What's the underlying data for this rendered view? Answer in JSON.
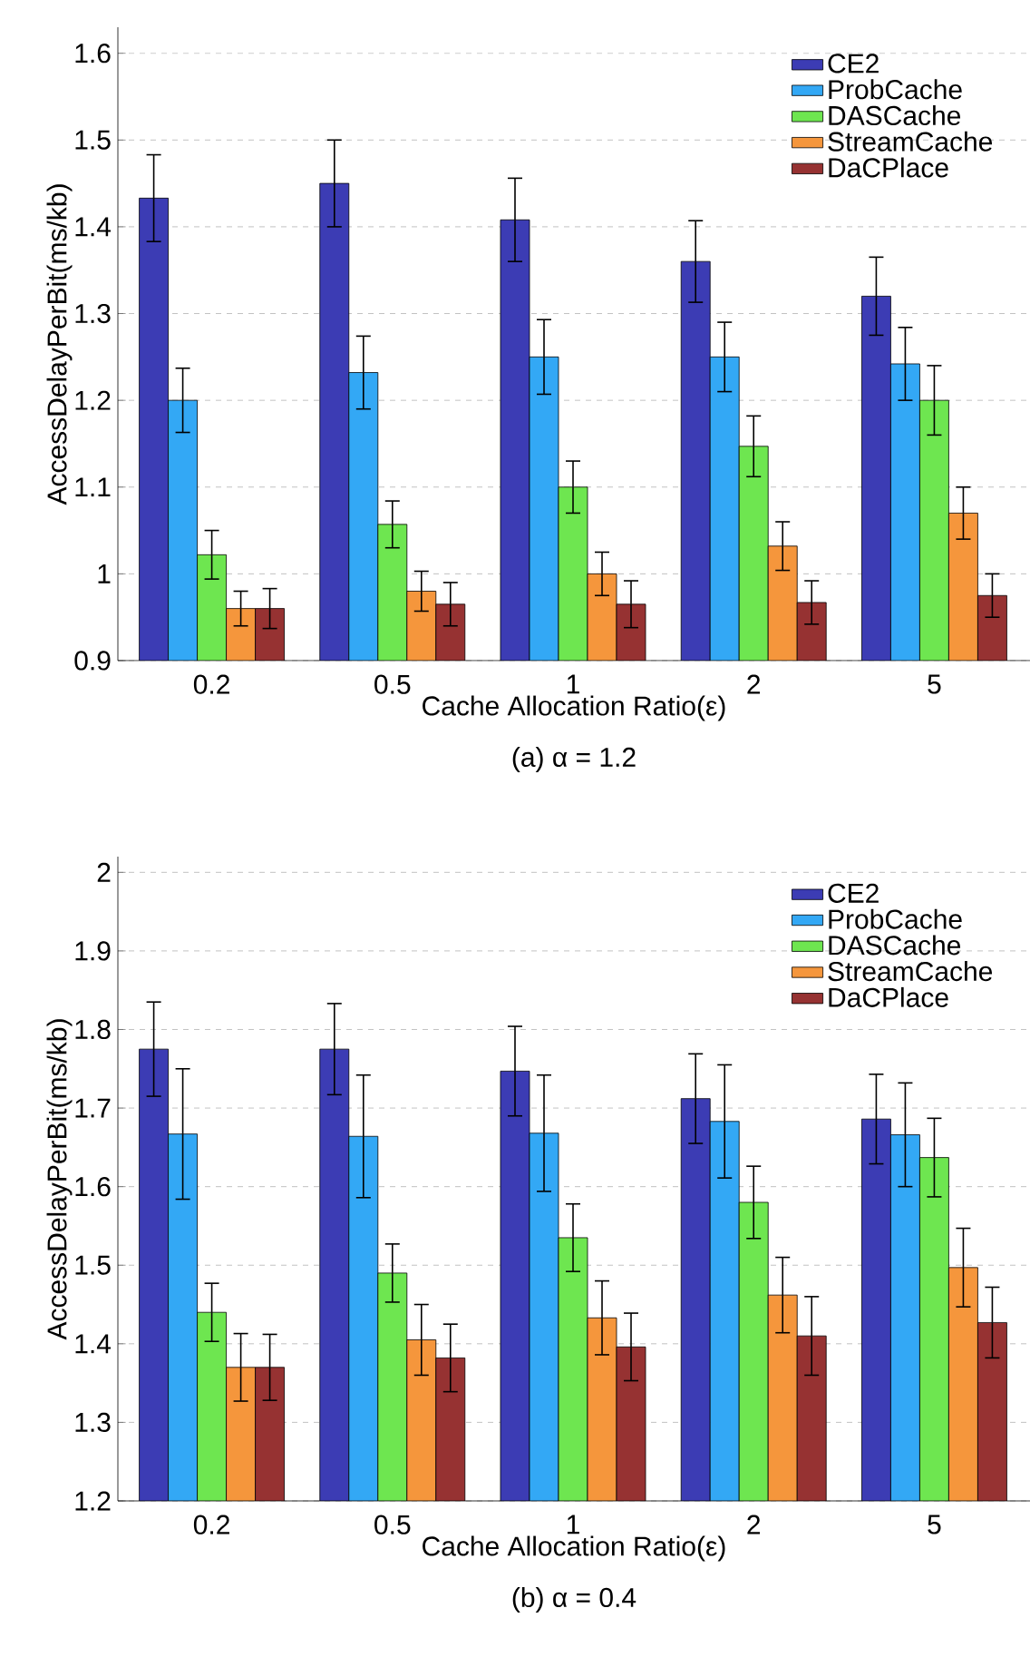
{
  "chart_data": [
    {
      "type": "bar",
      "title": "(a) α = 1.2",
      "xlabel": "Cache Allocation Ratio(ε)",
      "ylabel": "AccessDelayPerBit(ms/kb)",
      "categories": [
        "0.2",
        "0.5",
        "1",
        "2",
        "5"
      ],
      "series": [
        {
          "name": "CE2",
          "color": "#3c3cb4",
          "values": [
            1.433,
            1.45,
            1.408,
            1.36,
            1.32
          ],
          "errors": [
            0.05,
            0.05,
            0.048,
            0.047,
            0.045
          ]
        },
        {
          "name": "ProbCache",
          "color": "#33a8f5",
          "values": [
            1.2,
            1.232,
            1.25,
            1.25,
            1.242
          ],
          "errors": [
            0.037,
            0.042,
            0.043,
            0.04,
            0.042
          ]
        },
        {
          "name": "DASCache",
          "color": "#6ee650",
          "values": [
            1.022,
            1.057,
            1.1,
            1.147,
            1.2
          ],
          "errors": [
            0.028,
            0.027,
            0.03,
            0.035,
            0.04
          ]
        },
        {
          "name": "StreamCache",
          "color": "#f5963c",
          "values": [
            0.96,
            0.98,
            1.0,
            1.032,
            1.07
          ],
          "errors": [
            0.02,
            0.023,
            0.025,
            0.028,
            0.03
          ]
        },
        {
          "name": "DaCPlace",
          "color": "#963232",
          "values": [
            0.96,
            0.965,
            0.965,
            0.967,
            0.975
          ],
          "errors": [
            0.023,
            0.025,
            0.027,
            0.025,
            0.025
          ]
        }
      ],
      "ylim": [
        0.9,
        1.63
      ],
      "yticks": [
        0.9,
        1,
        1.1,
        1.2,
        1.3,
        1.4,
        1.5,
        1.6
      ],
      "grid": "y",
      "legend": "top right"
    },
    {
      "type": "bar",
      "title": "(b) α = 0.4",
      "xlabel": "Cache Allocation Ratio(ε)",
      "ylabel": "AccessDelayPerBit(ms/kb)",
      "categories": [
        "0.2",
        "0.5",
        "1",
        "2",
        "5"
      ],
      "series": [
        {
          "name": "CE2",
          "color": "#3c3cb4",
          "values": [
            1.775,
            1.775,
            1.747,
            1.712,
            1.686
          ],
          "errors": [
            0.06,
            0.058,
            0.057,
            0.057,
            0.057
          ]
        },
        {
          "name": "ProbCache",
          "color": "#33a8f5",
          "values": [
            1.667,
            1.664,
            1.668,
            1.683,
            1.666
          ],
          "errors": [
            0.083,
            0.078,
            0.074,
            0.072,
            0.066
          ]
        },
        {
          "name": "DASCache",
          "color": "#6ee650",
          "values": [
            1.44,
            1.49,
            1.535,
            1.58,
            1.637
          ],
          "errors": [
            0.037,
            0.037,
            0.043,
            0.046,
            0.05
          ]
        },
        {
          "name": "StreamCache",
          "color": "#f5963c",
          "values": [
            1.37,
            1.405,
            1.433,
            1.462,
            1.497
          ],
          "errors": [
            0.043,
            0.045,
            0.047,
            0.048,
            0.05
          ]
        },
        {
          "name": "DaCPlace",
          "color": "#963232",
          "values": [
            1.37,
            1.382,
            1.396,
            1.41,
            1.427
          ],
          "errors": [
            0.042,
            0.043,
            0.043,
            0.05,
            0.045
          ]
        }
      ],
      "ylim": [
        1.2,
        2.02
      ],
      "yticks": [
        1.2,
        1.3,
        1.4,
        1.5,
        1.6,
        1.7,
        1.8,
        1.9,
        2
      ],
      "grid": "y",
      "legend": "top right"
    }
  ]
}
